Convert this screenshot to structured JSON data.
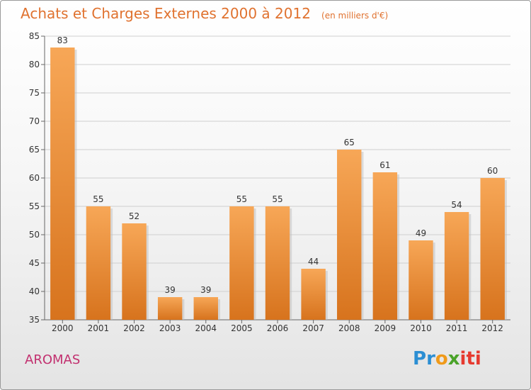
{
  "chart_data": {
    "type": "bar",
    "title": "Achats et Charges Externes 2000 à 2012",
    "subtitle": "(en milliers d'€)",
    "categories": [
      "2000",
      "2001",
      "2002",
      "2003",
      "2004",
      "2005",
      "2006",
      "2007",
      "2008",
      "2009",
      "2010",
      "2011",
      "2012"
    ],
    "values": [
      83,
      55,
      52,
      39,
      39,
      55,
      55,
      44,
      65,
      61,
      49,
      54,
      60
    ],
    "ylim": [
      35,
      85
    ],
    "yticks": [
      35,
      40,
      45,
      50,
      55,
      60,
      65,
      70,
      75,
      80,
      85
    ],
    "xlabel": "",
    "ylabel": "",
    "grid": true,
    "bar_color_top": "#f7a757",
    "bar_color_bottom": "#d7731d"
  },
  "footer": {
    "commune": "AROMAS",
    "logo_letters": [
      "P",
      "r",
      "o",
      "x",
      "i",
      "t",
      "i"
    ],
    "logo_colors": [
      "#2b8ed3",
      "#2b8ed3",
      "#f09a1a",
      "#4aa329",
      "#e63a2f",
      "#e63a2f",
      "#e63a2f"
    ]
  }
}
